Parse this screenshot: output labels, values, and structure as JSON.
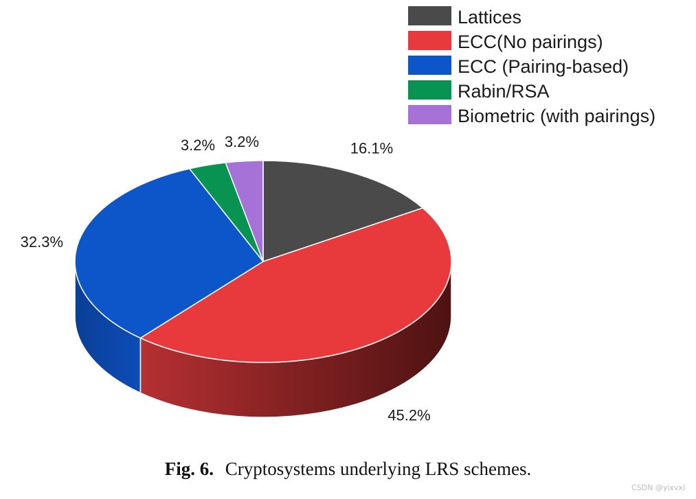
{
  "chart_data": {
    "type": "pie",
    "title": "",
    "legend_position": "top-right",
    "slices": [
      {
        "label": "Lattices",
        "value": 16.1,
        "display": "16.1%",
        "color": "#4a4a4a",
        "side_color": "#2e2e2e"
      },
      {
        "label": "ECC(No pairings)",
        "value": 45.2,
        "display": "45.2%",
        "color": "#e83a3c",
        "side_color": "#7a1e1e"
      },
      {
        "label": "ECC (Pairing-based)",
        "value": 32.3,
        "display": "32.3%",
        "color": "#0d56c9",
        "side_color": "#0a3f96"
      },
      {
        "label": "Rabin/RSA",
        "value": 3.2,
        "display": "3.2%",
        "color": "#089353",
        "side_color": "#05633a"
      },
      {
        "label": "Biometric (with pairings)",
        "value": 3.2,
        "display": "3.2%",
        "color": "#a672d8",
        "side_color": "#6f4a94"
      }
    ]
  },
  "caption": {
    "fig_label": "Fig. 6.",
    "text": "Cryptosystems underlying LRS schemes."
  },
  "watermark": "CSDN @yixvxi"
}
